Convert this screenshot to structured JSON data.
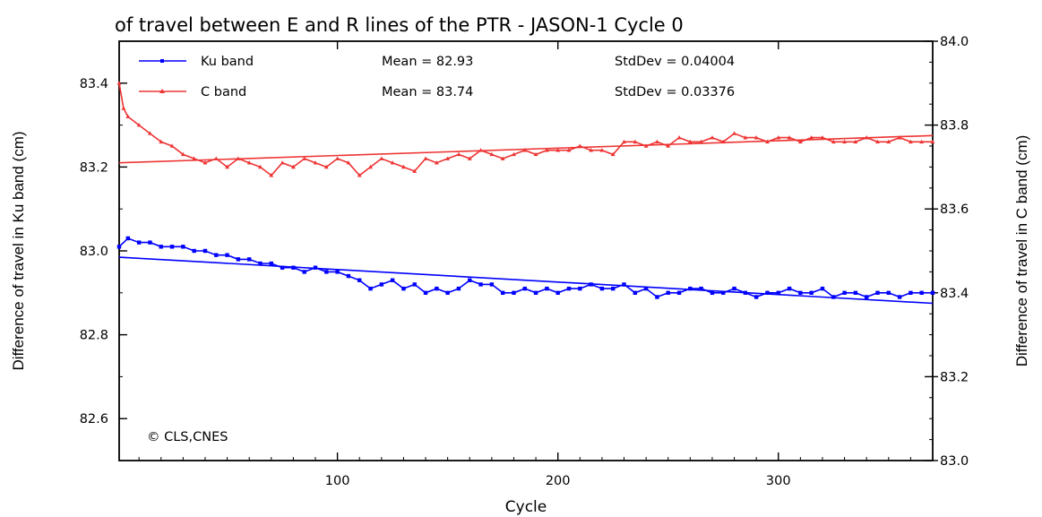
{
  "chart_data": {
    "type": "line",
    "title": "of travel between E and R lines of the PTR - JASON-1 Cycle 0",
    "xlabel": "Cycle",
    "ylabel_left": "Difference of travel in Ku band (cm)",
    "ylabel_right": "Difference of travel in C band (cm)",
    "xlim": [
      1,
      370
    ],
    "ylim_left": [
      82.5,
      83.5
    ],
    "ylim_right": [
      83.0,
      84.0
    ],
    "x_ticks": [
      100,
      200,
      300
    ],
    "x_tick_labels": [
      "100",
      "200",
      "300"
    ],
    "y_ticks_left": [
      82.6,
      82.8,
      83.0,
      83.2,
      83.4
    ],
    "y_tick_labels_left": [
      "82.6",
      "82.8",
      "83.0",
      "83.2",
      "83.4"
    ],
    "y_ticks_right": [
      83.0,
      83.2,
      83.4,
      83.6,
      83.8,
      84.0
    ],
    "y_tick_labels_right": [
      "83.0",
      "83.2",
      "83.4",
      "83.6",
      "83.8",
      "84.0"
    ],
    "grid": false,
    "legend_position": "top-left",
    "annotation": "© CLS,CNES",
    "series": [
      {
        "name": "Ku band",
        "axis": "left",
        "color": "#0000ff",
        "marker": "square",
        "mean_label": "Mean = 82.93",
        "std_label": "StdDev = 0.04004",
        "x": [
          1,
          5,
          10,
          15,
          20,
          25,
          30,
          35,
          40,
          45,
          50,
          55,
          60,
          65,
          70,
          75,
          80,
          85,
          90,
          95,
          100,
          105,
          110,
          115,
          120,
          125,
          130,
          135,
          140,
          145,
          150,
          155,
          160,
          165,
          170,
          175,
          180,
          185,
          190,
          195,
          200,
          205,
          210,
          215,
          220,
          225,
          230,
          235,
          240,
          245,
          250,
          255,
          260,
          265,
          270,
          275,
          280,
          285,
          290,
          295,
          300,
          305,
          310,
          315,
          320,
          325,
          330,
          335,
          340,
          345,
          350,
          355,
          360,
          365,
          370
        ],
        "values": [
          83.01,
          83.03,
          83.02,
          83.02,
          83.01,
          83.01,
          83.01,
          83.0,
          83.0,
          82.99,
          82.99,
          82.98,
          82.98,
          82.97,
          82.97,
          82.96,
          82.96,
          82.95,
          82.96,
          82.95,
          82.95,
          82.94,
          82.93,
          82.91,
          82.92,
          82.93,
          82.91,
          82.92,
          82.9,
          82.91,
          82.9,
          82.91,
          82.93,
          82.92,
          82.92,
          82.9,
          82.9,
          82.91,
          82.9,
          82.91,
          82.9,
          82.91,
          82.91,
          82.92,
          82.91,
          82.91,
          82.92,
          82.9,
          82.91,
          82.89,
          82.9,
          82.9,
          82.91,
          82.91,
          82.9,
          82.9,
          82.91,
          82.9,
          82.89,
          82.9,
          82.9,
          82.91,
          82.9,
          82.9,
          82.91,
          82.89,
          82.9,
          82.9,
          82.89,
          82.9,
          82.9,
          82.89,
          82.9,
          82.9,
          82.9
        ],
        "fit": [
          [
            1,
            82.985
          ],
          [
            370,
            82.875
          ]
        ]
      },
      {
        "name": "C band",
        "axis": "right",
        "color": "#ee3333",
        "marker": "triangle",
        "mean_label": "Mean = 83.74",
        "std_label": "StdDev = 0.03376",
        "x": [
          1,
          3,
          5,
          10,
          15,
          20,
          25,
          30,
          35,
          40,
          45,
          50,
          55,
          60,
          65,
          70,
          75,
          80,
          85,
          90,
          95,
          100,
          105,
          110,
          115,
          120,
          125,
          130,
          135,
          140,
          145,
          150,
          155,
          160,
          165,
          170,
          175,
          180,
          185,
          190,
          195,
          200,
          205,
          210,
          215,
          220,
          225,
          230,
          235,
          240,
          245,
          250,
          255,
          260,
          265,
          270,
          275,
          280,
          285,
          290,
          295,
          300,
          305,
          310,
          315,
          320,
          325,
          330,
          335,
          340,
          345,
          350,
          355,
          360,
          365,
          370
        ],
        "values": [
          83.9,
          83.84,
          83.82,
          83.8,
          83.78,
          83.76,
          83.75,
          83.73,
          83.72,
          83.71,
          83.72,
          83.7,
          83.72,
          83.71,
          83.7,
          83.68,
          83.71,
          83.7,
          83.72,
          83.71,
          83.7,
          83.72,
          83.71,
          83.68,
          83.7,
          83.72,
          83.71,
          83.7,
          83.69,
          83.72,
          83.71,
          83.72,
          83.73,
          83.72,
          83.74,
          83.73,
          83.72,
          83.73,
          83.74,
          83.73,
          83.74,
          83.74,
          83.74,
          83.75,
          83.74,
          83.74,
          83.73,
          83.76,
          83.76,
          83.75,
          83.76,
          83.75,
          83.77,
          83.76,
          83.76,
          83.77,
          83.76,
          83.78,
          83.77,
          83.77,
          83.76,
          83.77,
          83.77,
          83.76,
          83.77,
          83.77,
          83.76,
          83.76,
          83.76,
          83.77,
          83.76,
          83.76,
          83.77,
          83.76,
          83.76,
          83.76
        ],
        "fit": [
          [
            1,
            83.71
          ],
          [
            370,
            83.775
          ]
        ]
      }
    ]
  }
}
